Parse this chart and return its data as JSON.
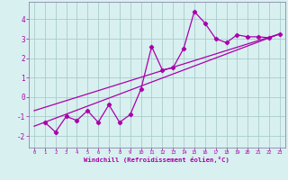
{
  "xlabel": "Windchill (Refroidissement éolien,°C)",
  "bg_color": "#d8f0f0",
  "line_color": "#aa00aa",
  "grid_color": "#aacccc",
  "spine_color": "#8888aa",
  "xlim": [
    -0.5,
    23.5
  ],
  "ylim": [
    -2.6,
    4.9
  ],
  "xticks": [
    0,
    1,
    2,
    3,
    4,
    5,
    6,
    7,
    8,
    9,
    10,
    11,
    12,
    13,
    14,
    15,
    16,
    17,
    18,
    19,
    20,
    21,
    22,
    23
  ],
  "yticks": [
    -2,
    -1,
    0,
    1,
    2,
    3,
    4
  ],
  "scatter_x": [
    1,
    2,
    3,
    4,
    5,
    6,
    7,
    8,
    9,
    10,
    11,
    12,
    13,
    14,
    15,
    16,
    17,
    18,
    19,
    20,
    21,
    22,
    23
  ],
  "scatter_y": [
    -1.3,
    -1.8,
    -1.0,
    -1.2,
    -0.7,
    -1.3,
    -0.4,
    -1.3,
    -0.9,
    0.4,
    2.6,
    1.4,
    1.5,
    2.5,
    4.4,
    3.8,
    3.0,
    2.8,
    3.2,
    3.1,
    3.1,
    3.05,
    3.25
  ],
  "line1_x": [
    0,
    23
  ],
  "line1_y": [
    -1.5,
    3.25
  ],
  "line2_x": [
    0,
    23
  ],
  "line2_y": [
    -0.7,
    3.25
  ]
}
